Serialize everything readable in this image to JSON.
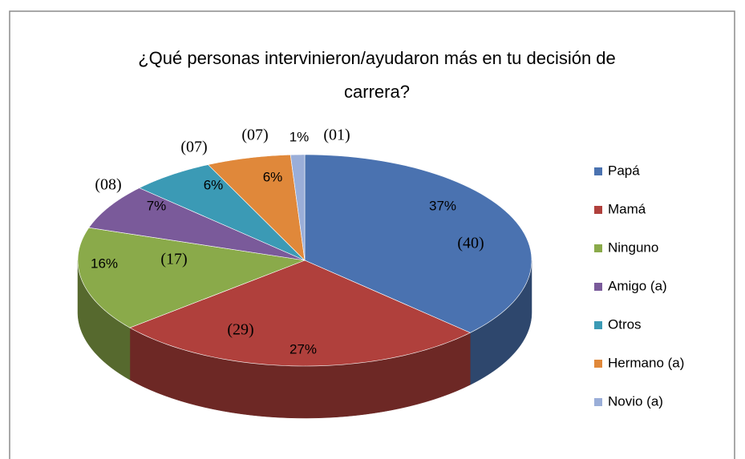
{
  "chart_data": {
    "type": "pie",
    "title": "¿Qué personas intervinieron/ayudaron más en tu decisión de carrera?",
    "categories": [
      "Papá",
      "Mamá",
      "Ninguno",
      "Amigo (a)",
      "Otros",
      "Hermano (a)",
      "Novio (a)"
    ],
    "values": [
      37,
      27,
      16,
      7,
      6,
      6,
      1
    ],
    "value_labels": [
      "37%",
      "27%",
      "16%",
      "7%",
      "6%",
      "6%",
      "1%"
    ],
    "counts": [
      40,
      29,
      17,
      8,
      7,
      7,
      1
    ],
    "count_labels": [
      "(40)",
      "(29)",
      "(17)",
      "(08)",
      "(07)",
      "(07)",
      "(01)"
    ],
    "colors": [
      "#4a72b0",
      "#b0403c",
      "#8aaa4a",
      "#7a5a9a",
      "#3b9ab5",
      "#e0883a",
      "#9aaed8"
    ],
    "legend": "right"
  }
}
